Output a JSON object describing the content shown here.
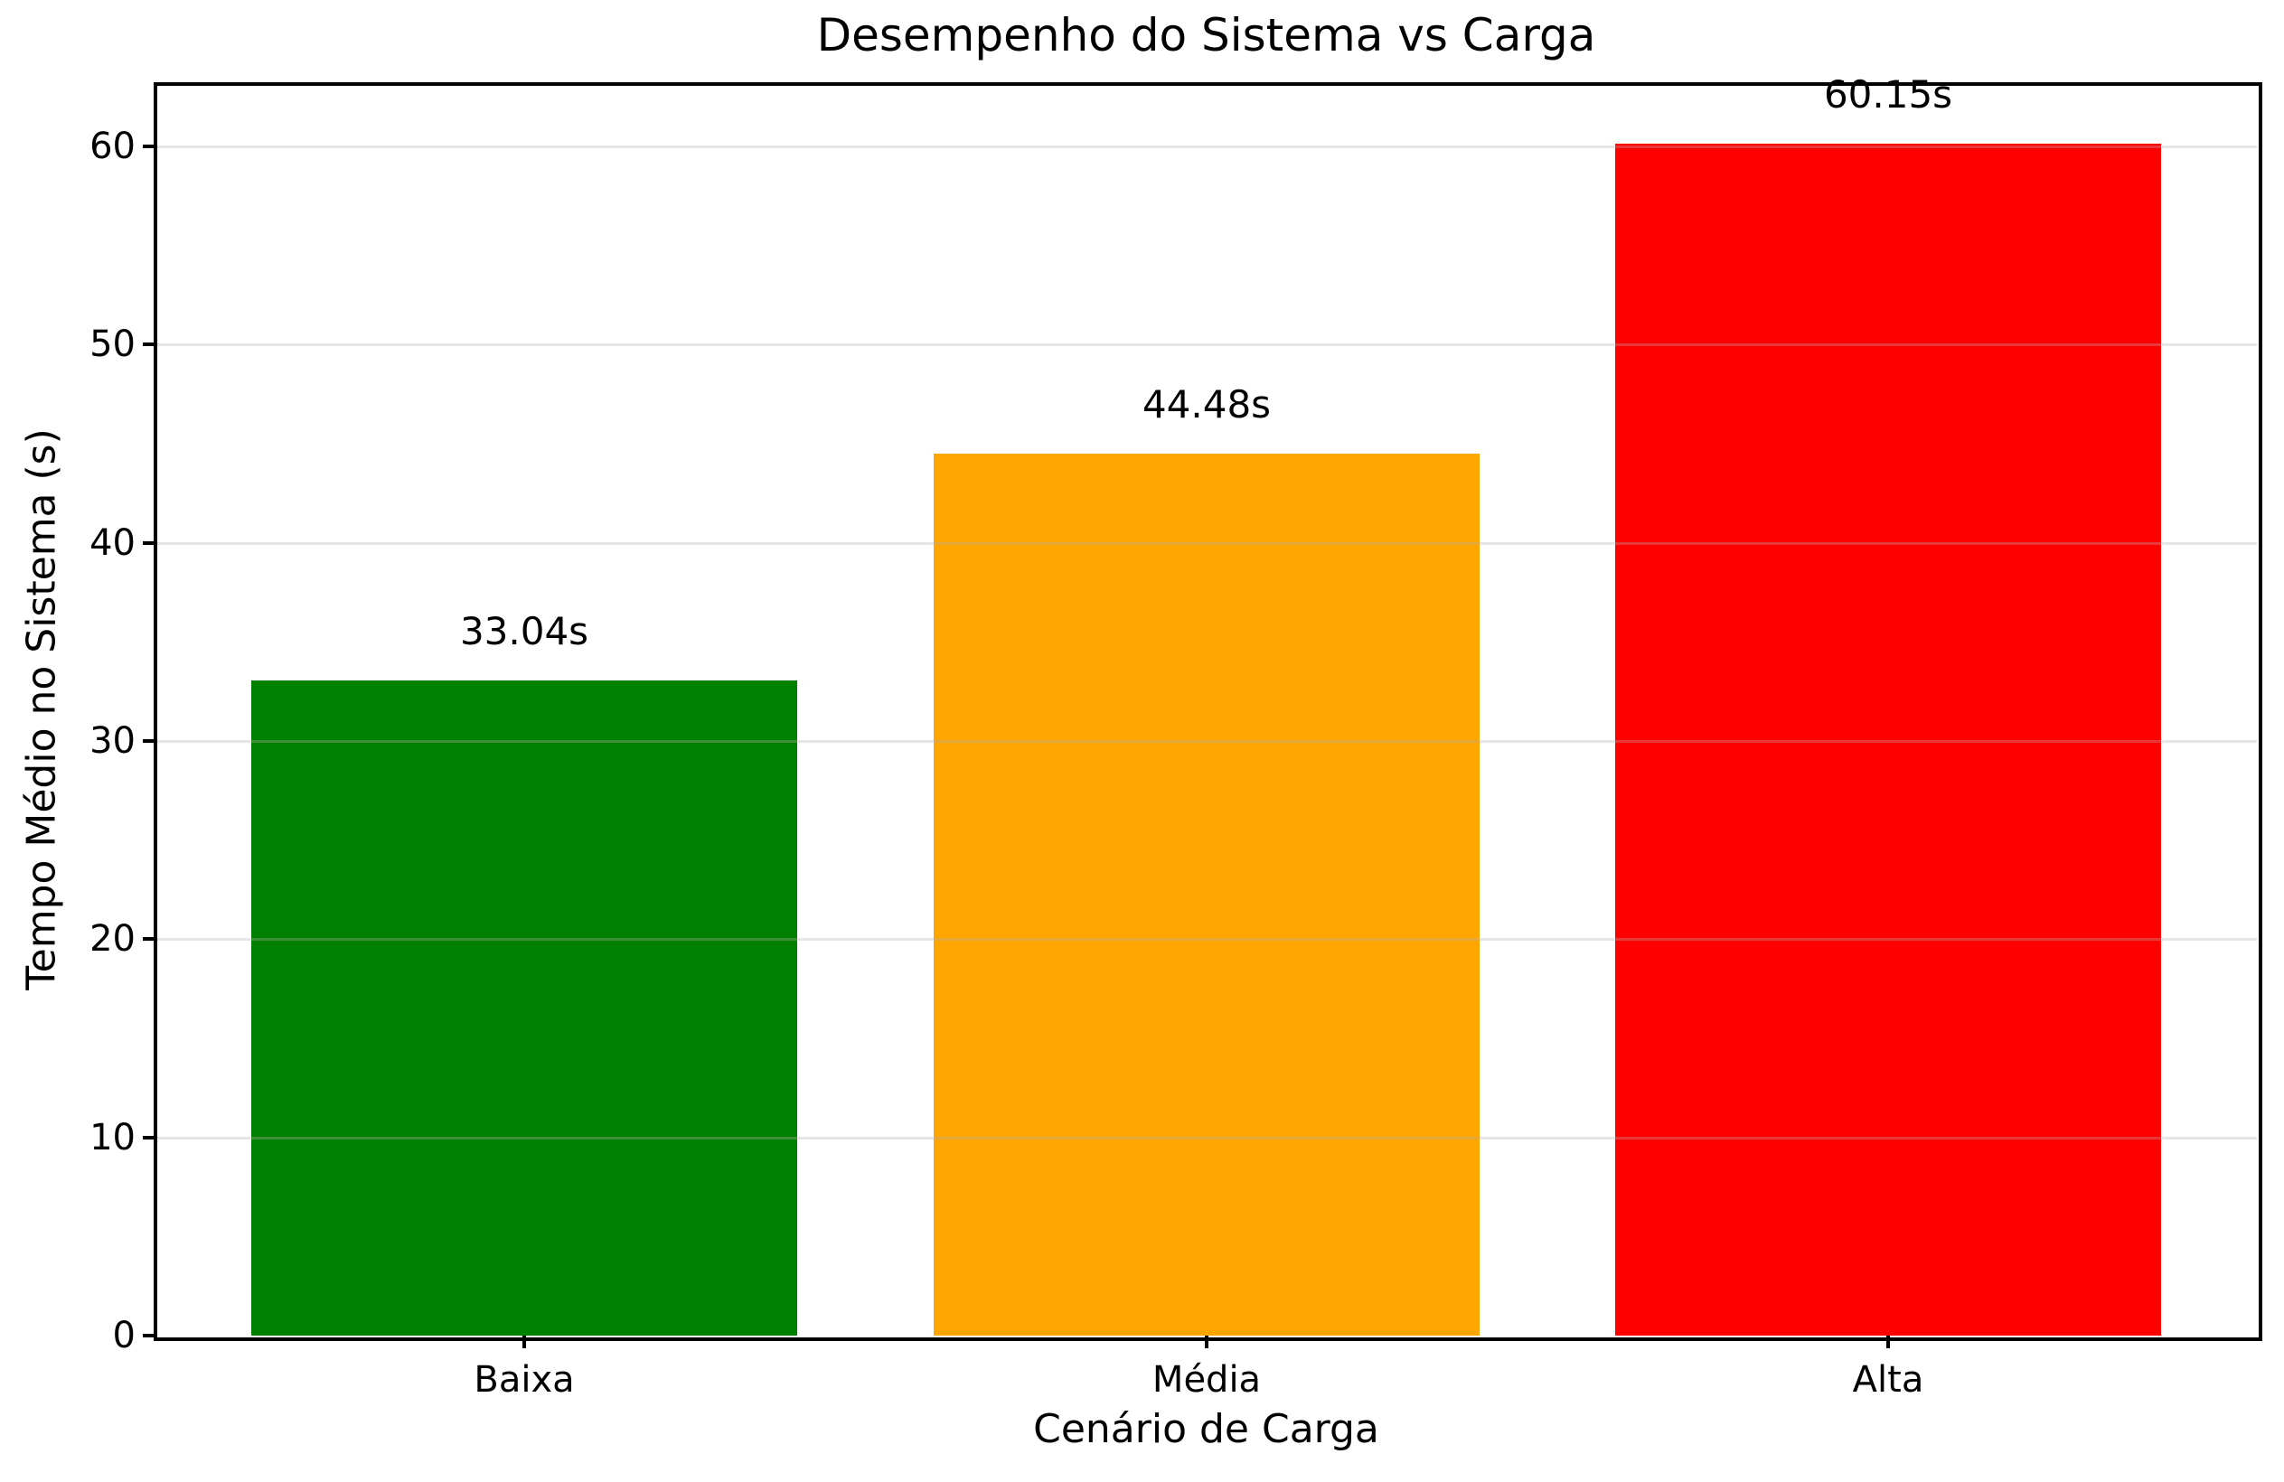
{
  "chart_data": {
    "type": "bar",
    "title": "Desempenho do Sistema vs Carga",
    "xlabel": "Cenário de Carga",
    "ylabel": "Tempo Médio no Sistema (s)",
    "categories": [
      "Baixa",
      "Média",
      "Alta"
    ],
    "values": [
      33.04,
      44.48,
      60.15
    ],
    "value_labels": [
      "33.04s",
      "44.48s",
      "60.15s"
    ],
    "bar_colors": [
      "#008000",
      "#FFA500",
      "#FF0000"
    ],
    "yticks": [
      0,
      10,
      20,
      30,
      40,
      50,
      60
    ],
    "ylim": [
      0,
      63.15
    ],
    "grid": true,
    "grid_color": "#b0b0b0",
    "grid_alpha": 0.3,
    "grid_above_bars": true,
    "frame_color": "#000000",
    "background_color": "#ffffff",
    "legend": "none"
  }
}
